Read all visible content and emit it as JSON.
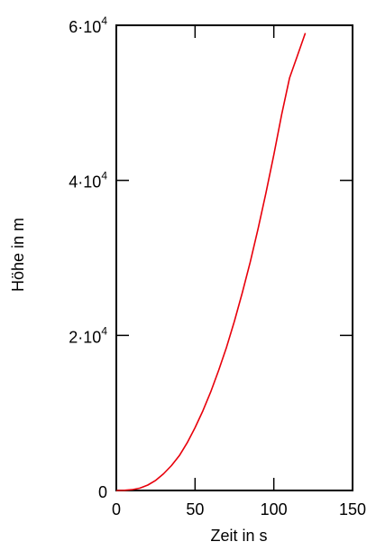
{
  "chart_data": {
    "type": "line",
    "xlabel": "Zeit in s",
    "ylabel": "Höhe in m",
    "xlim": [
      0,
      150
    ],
    "ylim": [
      0,
      60000
    ],
    "x_ticks": [
      {
        "value": 0,
        "label": "0"
      },
      {
        "value": 50,
        "label": "50"
      },
      {
        "value": 100,
        "label": "100"
      },
      {
        "value": 150,
        "label": "150"
      }
    ],
    "y_ticks": [
      {
        "value": 0,
        "mantissa": "0",
        "exponent": ""
      },
      {
        "value": 20000,
        "mantissa": "2·10",
        "exponent": "4"
      },
      {
        "value": 40000,
        "mantissa": "4·10",
        "exponent": "4"
      },
      {
        "value": 60000,
        "mantissa": "6·10",
        "exponent": "4"
      }
    ],
    "grid": false,
    "series": [
      {
        "color": "#e8000b",
        "x": [
          0,
          5,
          10,
          15,
          20,
          25,
          30,
          35,
          40,
          45,
          50,
          55,
          60,
          65,
          70,
          75,
          80,
          85,
          90,
          95,
          100,
          105,
          110,
          115,
          120
        ],
        "y": [
          0,
          20,
          100,
          300,
          700,
          1300,
          2150,
          3200,
          4500,
          6150,
          8100,
          10300,
          12750,
          15500,
          18500,
          21850,
          25500,
          29450,
          33750,
          38350,
          43300,
          48500,
          53200,
          56100,
          59000
        ]
      }
    ]
  }
}
